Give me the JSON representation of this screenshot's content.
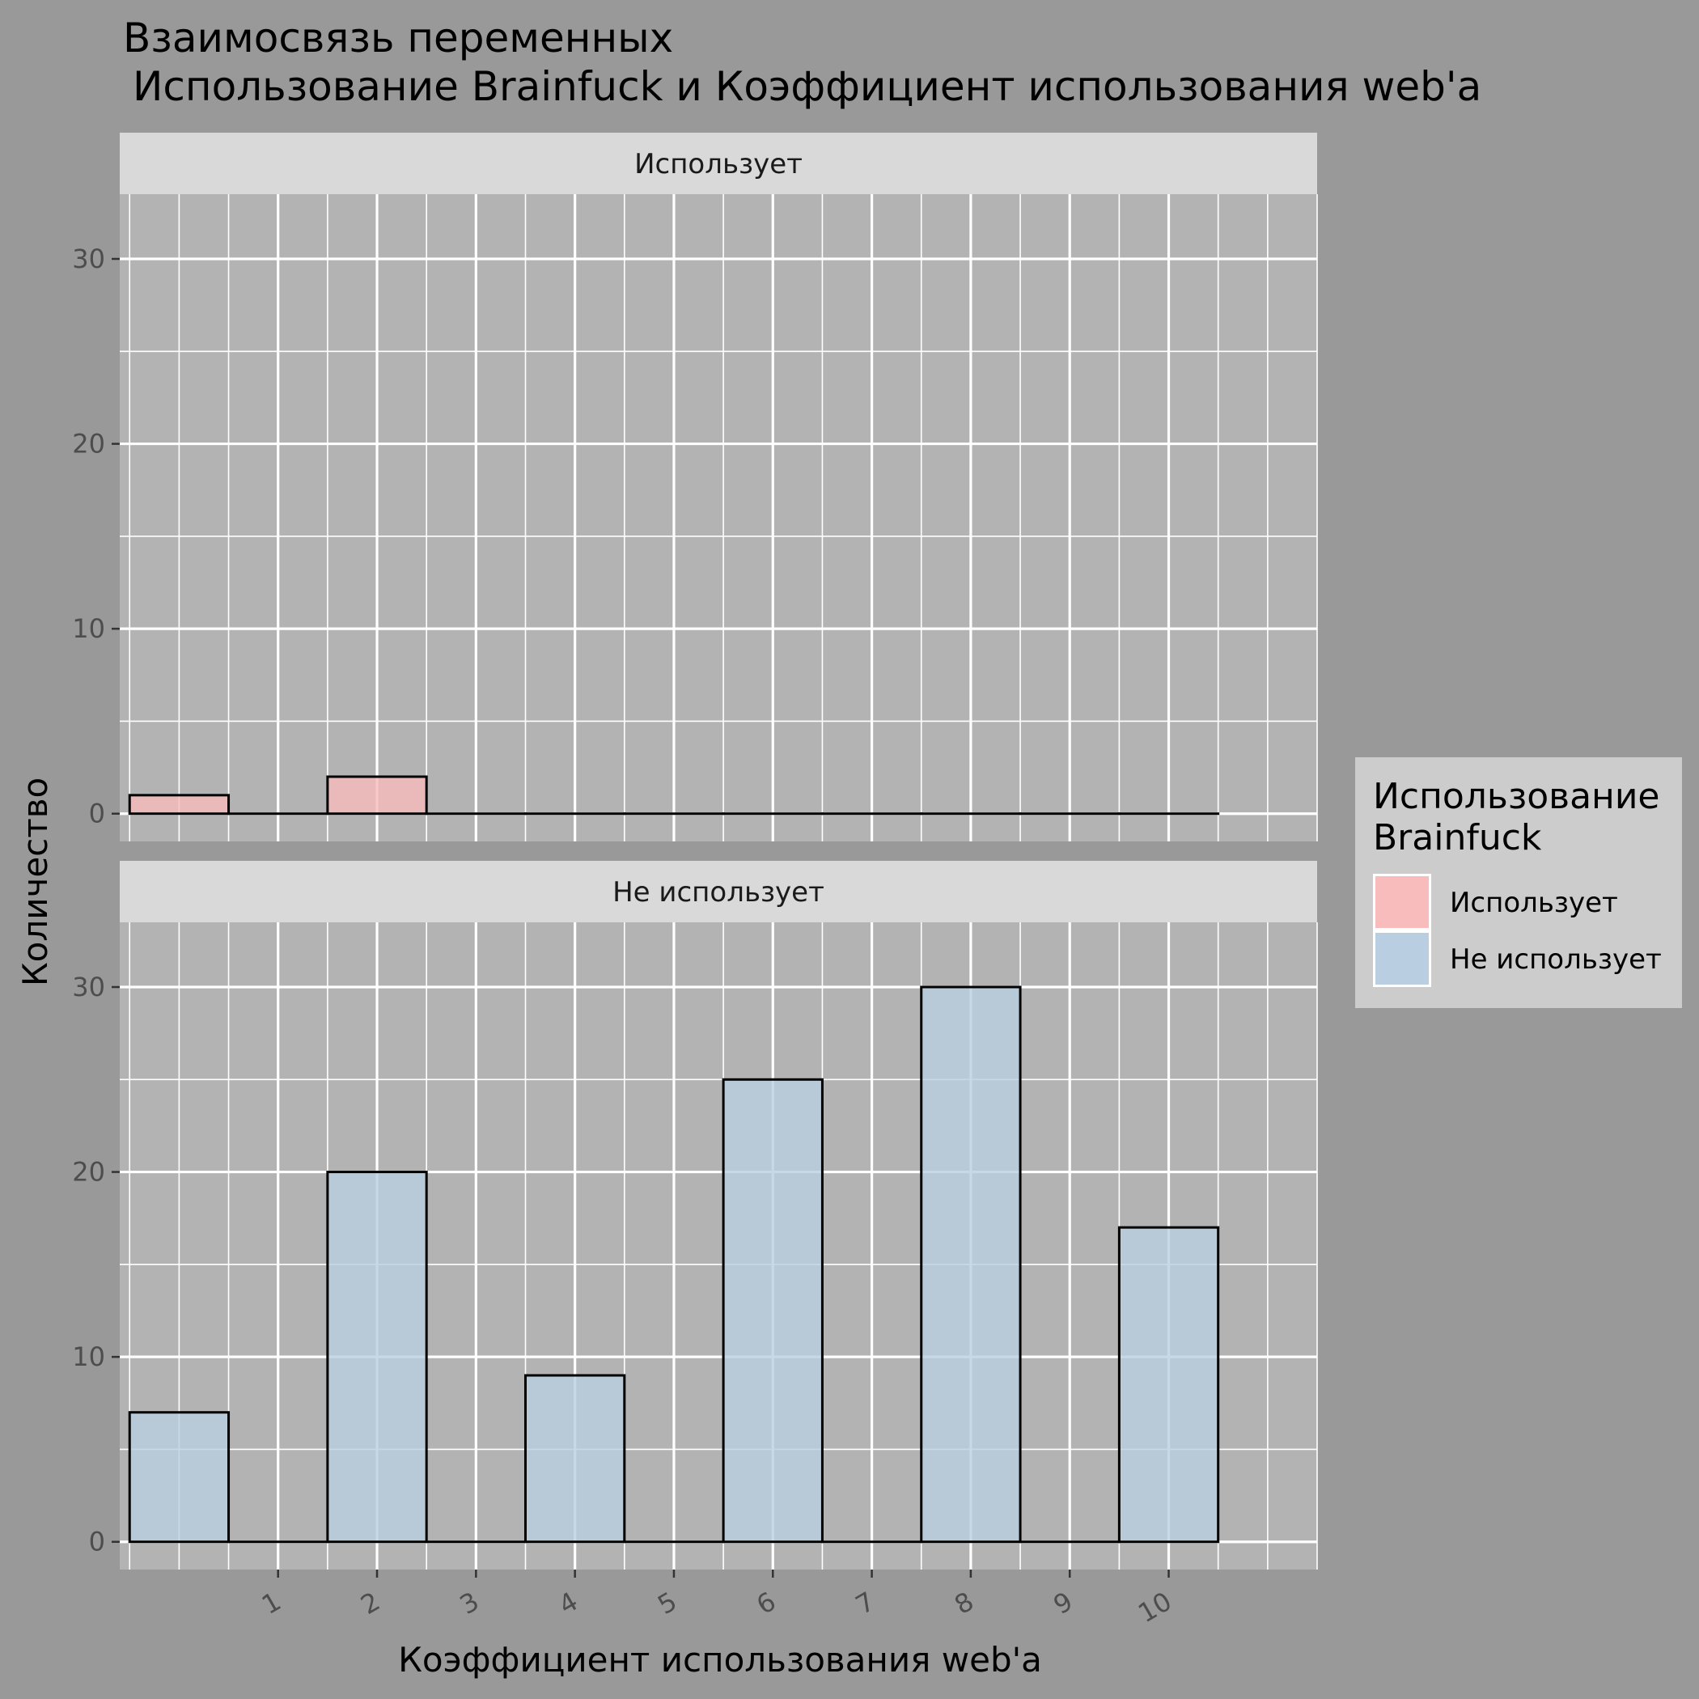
{
  "chart_data": {
    "type": "bar",
    "title_line1": "Взаимосвязь переменных",
    "title_line2": "Использование Brainfuck и Коэффициент использования web'a",
    "xlabel": "Коэффициент использования web'a",
    "ylabel": "Количество",
    "x_ticks": [
      "1",
      "2",
      "3",
      "4",
      "5",
      "6",
      "7",
      "8",
      "9",
      "10"
    ],
    "x_range": [
      -0.6,
      11.5
    ],
    "y_ticks": [
      0,
      10,
      20,
      30
    ],
    "ylim": [
      -1.5,
      33.5
    ],
    "bin_width": 1,
    "bin_start": -0.5,
    "grid": true,
    "legend": {
      "title_line1": "Использование",
      "title_line2": "Brainfuck",
      "position": "right",
      "items": [
        {
          "label": "Использует",
          "color": "#f8bcbc"
        },
        {
          "label": "Не использует",
          "color": "#b9cfe1"
        }
      ]
    },
    "panels": [
      {
        "strip": "Использует",
        "fill": "#f8bcbc",
        "bins": [
          -0.5,
          0.5,
          1.5,
          2.5,
          3.5,
          4.5,
          5.5,
          6.5,
          7.5,
          8.5,
          9.5
        ],
        "values": [
          1,
          0,
          2,
          0,
          0,
          0,
          0,
          0,
          0,
          0,
          0
        ]
      },
      {
        "strip": "Не использует",
        "fill": "#b9cfe1",
        "bins": [
          -0.5,
          0.5,
          1.5,
          2.5,
          3.5,
          4.5,
          5.5,
          6.5,
          7.5,
          8.5,
          9.5
        ],
        "values": [
          7,
          0,
          20,
          0,
          9,
          0,
          25,
          0,
          30,
          0,
          17
        ]
      }
    ]
  }
}
